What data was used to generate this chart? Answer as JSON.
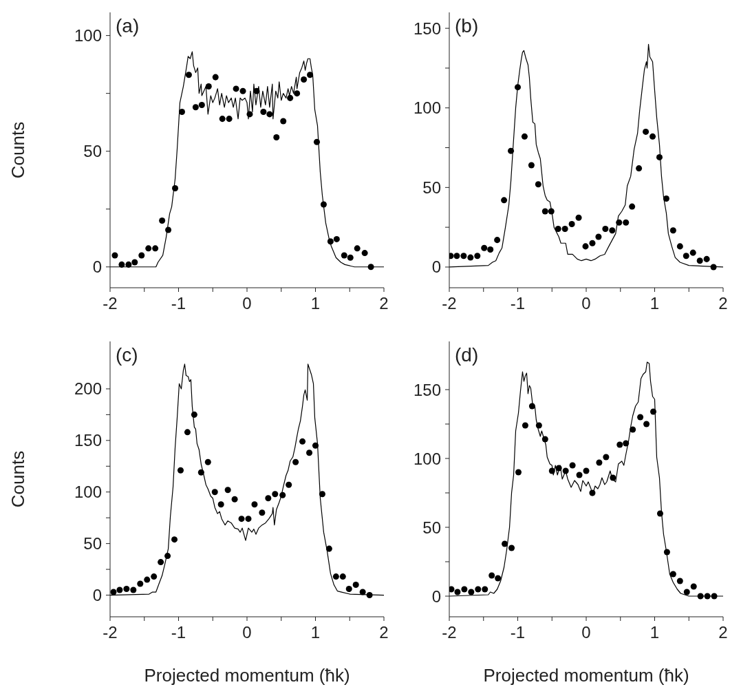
{
  "chart_data": [
    {
      "type": "scatter",
      "annotations": [
        "(a)"
      ],
      "ylabel": "Counts",
      "xlim": [
        -2,
        2
      ],
      "xticks": [
        -2,
        {
          "value": -1.5,
          "label": null
        },
        -1,
        {
          "value": -0.5,
          "label": null
        },
        0,
        {
          "value": 0.5,
          "label": null
        },
        1,
        {
          "value": 1.5,
          "label": null
        },
        2
      ],
      "ylim": [
        -9,
        110
      ],
      "yticks": [
        0,
        {
          "value": 25,
          "label": null
        },
        50,
        {
          "value": 75,
          "label": null
        },
        100
      ],
      "line_style": "solid",
      "series": [
        {
          "type": "line",
          "color": "#000000",
          "x": [
            -2,
            -1.33,
            -1.3,
            -1.23,
            -1.18,
            -1.13,
            -1.1,
            -1.05,
            -1.02,
            -0.98,
            -0.93,
            -0.88,
            -0.86,
            -0.83,
            -0.8,
            -0.78,
            -0.75,
            -0.72,
            -0.7,
            -0.67,
            -0.66,
            -0.63,
            -0.6,
            -0.57,
            -0.53,
            -0.5,
            -0.47,
            -0.43,
            -0.4,
            -0.37,
            -0.33,
            -0.3,
            -0.27,
            -0.23,
            -0.2,
            -0.17,
            -0.13,
            -0.1,
            -0.07,
            -0.03,
            0,
            0.02,
            0.05,
            0.08,
            0.1,
            0.13,
            0.17,
            0.2,
            0.23,
            0.27,
            0.3,
            0.33,
            0.37,
            0.38,
            0.42,
            0.45,
            0.47,
            0.5,
            0.53,
            0.57,
            0.6,
            0.62,
            0.65,
            0.68,
            0.72,
            0.73,
            0.77,
            0.8,
            0.83,
            0.85,
            0.87,
            0.89,
            0.92,
            0.94,
            0.96,
            0.99,
            1.03,
            1.07,
            1.1,
            1.15,
            1.2,
            1.23,
            1.3,
            1.37,
            1.43,
            1.57,
            2
          ],
          "values": [
            0,
            0,
            2,
            5,
            13,
            23,
            26,
            38,
            51,
            71,
            78,
            87,
            91,
            90,
            93,
            87,
            84,
            86,
            75,
            79,
            74,
            76,
            78,
            66,
            74,
            71,
            73,
            77,
            70,
            75,
            69,
            74,
            71,
            73,
            69,
            73,
            64,
            73,
            72,
            73,
            71,
            64,
            76,
            67,
            79,
            70,
            78,
            69,
            76,
            70,
            78,
            69,
            79,
            64,
            76,
            73,
            80,
            72,
            75,
            73,
            77,
            74,
            78,
            75,
            82,
            77,
            84,
            86,
            89,
            85,
            88,
            90,
            90,
            86,
            83,
            68,
            61,
            41,
            31,
            19,
            12,
            9,
            4,
            2,
            1,
            0,
            0
          ]
        },
        {
          "color": "#000000",
          "marker": "circle",
          "x": [
            -1.93,
            -1.83,
            -1.73,
            -1.64,
            -1.54,
            -1.44,
            -1.34,
            -1.24,
            -1.15,
            -1.05,
            -0.95,
            -0.85,
            -0.75,
            -0.66,
            -0.56,
            -0.46,
            -0.36,
            -0.26,
            -0.16,
            -0.06,
            0.04,
            0.14,
            0.24,
            0.33,
            0.43,
            0.53,
            0.63,
            0.73,
            0.83,
            0.92,
            1.02,
            1.12,
            1.22,
            1.31,
            1.42,
            1.51,
            1.61,
            1.72,
            1.81
          ],
          "values": [
            5,
            1,
            1,
            2,
            5,
            8,
            8,
            20,
            16,
            34,
            67,
            83,
            69,
            70,
            78,
            82,
            64,
            64,
            77,
            76,
            66,
            76,
            67,
            66,
            56,
            63,
            73,
            75,
            81,
            83,
            54,
            27,
            11,
            12,
            5,
            4,
            8,
            6,
            0
          ]
        }
      ]
    },
    {
      "type": "scatter",
      "annotations": [
        "(b)"
      ],
      "xlim": [
        -2,
        2
      ],
      "xticks": [
        -2,
        {
          "value": -1.5,
          "label": null
        },
        -1,
        {
          "value": -0.5,
          "label": null
        },
        0,
        {
          "value": 0.5,
          "label": null
        },
        1,
        {
          "value": 1.5,
          "label": null
        },
        2
      ],
      "ylim": [
        -13,
        160
      ],
      "yticks": [
        0,
        {
          "value": 25,
          "label": null
        },
        50,
        {
          "value": 75,
          "label": null
        },
        100,
        {
          "value": 125,
          "label": null
        },
        150
      ],
      "line_style": "solid",
      "series": [
        {
          "type": "line",
          "color": "#000000",
          "x": [
            -2,
            -1.43,
            -1.37,
            -1.32,
            -1.27,
            -1.23,
            -1.18,
            -1.13,
            -1.1,
            -1.07,
            -1.03,
            -1,
            -0.97,
            -0.95,
            -0.93,
            -0.91,
            -0.88,
            -0.85,
            -0.83,
            -0.81,
            -0.78,
            -0.75,
            -0.73,
            -0.7,
            -0.67,
            -0.63,
            -0.6,
            -0.57,
            -0.53,
            -0.5,
            -0.47,
            -0.4,
            -0.37,
            -0.3,
            -0.27,
            -0.2,
            -0.13,
            -0.07,
            0,
            0.07,
            0.13,
            0.2,
            0.27,
            0.33,
            0.43,
            0.47,
            0.52,
            0.57,
            0.6,
            0.65,
            0.7,
            0.75,
            0.78,
            0.82,
            0.85,
            0.88,
            0.89,
            0.91,
            0.93,
            0.97,
            1,
            1.03,
            1.07,
            1.1,
            1.13,
            1.17,
            1.2,
            1.25,
            1.3,
            1.37,
            1.5,
            2
          ],
          "values": [
            0,
            1,
            3,
            4,
            9,
            12,
            25,
            39,
            54,
            74,
            100,
            114,
            124,
            130,
            135,
            136,
            131,
            127,
            119,
            106,
            91,
            90,
            77,
            72,
            68,
            51,
            45,
            42,
            41,
            34,
            25,
            19,
            15,
            15,
            8,
            8,
            5,
            4,
            5,
            4,
            5,
            7,
            8,
            13,
            21,
            32,
            35,
            39,
            51,
            57,
            74,
            84,
            98,
            113,
            124,
            129,
            125,
            140,
            132,
            129,
            111,
            94,
            77,
            57,
            44,
            34,
            21,
            13,
            6,
            3,
            1,
            0
          ]
        },
        {
          "color": "#000000",
          "marker": "circle",
          "x": [
            -1.98,
            -1.89,
            -1.79,
            -1.69,
            -1.59,
            -1.49,
            -1.4,
            -1.3,
            -1.2,
            -1.1,
            -1,
            -0.9,
            -0.8,
            -0.7,
            -0.6,
            -0.51,
            -0.41,
            -0.31,
            -0.21,
            -0.11,
            -0.01,
            0.09,
            0.18,
            0.28,
            0.38,
            0.48,
            0.58,
            0.67,
            0.77,
            0.87,
            0.97,
            1.07,
            1.17,
            1.27,
            1.37,
            1.46,
            1.56,
            1.66,
            1.76,
            1.86
          ],
          "values": [
            7,
            7,
            7,
            6,
            7,
            12,
            11,
            17,
            42,
            73,
            113,
            82,
            64,
            52,
            35,
            35,
            24,
            24,
            27,
            31,
            13,
            15,
            19,
            24,
            23,
            28,
            28,
            38,
            62,
            85,
            82,
            69,
            43,
            23,
            13,
            7,
            9,
            4,
            5,
            0
          ]
        }
      ]
    },
    {
      "type": "scatter",
      "annotations": [
        "(c)"
      ],
      "xlabel": "Projected momentum (ħk)",
      "ylabel": "Counts",
      "xlim": [
        -2,
        2
      ],
      "xticks": [
        -2,
        {
          "value": -1.5,
          "label": null
        },
        -1,
        {
          "value": -0.5,
          "label": null
        },
        0,
        {
          "value": 0.5,
          "label": null
        },
        1,
        {
          "value": 1.5,
          "label": null
        },
        2
      ],
      "ylim": [
        -21,
        246
      ],
      "yticks": [
        0,
        {
          "value": 25,
          "label": null
        },
        50,
        {
          "value": 75,
          "label": null
        },
        100,
        {
          "value": 125,
          "label": null
        },
        150,
        {
          "value": 175,
          "label": null
        },
        200
      ],
      "line_style": "solid",
      "series": [
        {
          "type": "line",
          "color": "#000000",
          "x": [
            -2,
            -1.43,
            -1.38,
            -1.33,
            -1.28,
            -1.24,
            -1.2,
            -1.15,
            -1.12,
            -1.08,
            -1.05,
            -1.02,
            -0.99,
            -0.96,
            -0.93,
            -0.91,
            -0.89,
            -0.86,
            -0.84,
            -0.82,
            -0.8,
            -0.77,
            -0.75,
            -0.73,
            -0.7,
            -0.67,
            -0.63,
            -0.6,
            -0.57,
            -0.53,
            -0.5,
            -0.47,
            -0.43,
            -0.4,
            -0.37,
            -0.32,
            -0.28,
            -0.23,
            -0.18,
            -0.13,
            -0.1,
            -0.07,
            -0.02,
            0.02,
            0.07,
            0.1,
            0.13,
            0.17,
            0.22,
            0.27,
            0.32,
            0.37,
            0.38,
            0.4,
            0.43,
            0.47,
            0.5,
            0.53,
            0.57,
            0.6,
            0.63,
            0.67,
            0.7,
            0.73,
            0.75,
            0.78,
            0.81,
            0.83,
            0.85,
            0.88,
            0.89,
            0.92,
            0.94,
            0.97,
            0.99,
            1.03,
            1.07,
            1.12,
            1.17,
            1.22,
            1.27,
            1.32,
            1.38,
            1.5,
            2
          ],
          "values": [
            0,
            1,
            3,
            3,
            12,
            19,
            30,
            45,
            76,
            105,
            143,
            172,
            205,
            200,
            218,
            224,
            213,
            212,
            207,
            209,
            183,
            163,
            161,
            147,
            141,
            127,
            116,
            107,
            103,
            96,
            94,
            85,
            79,
            81,
            74,
            68,
            72,
            70,
            65,
            64,
            61,
            65,
            53,
            65,
            61,
            64,
            59,
            65,
            68,
            70,
            74,
            79,
            85,
            68,
            83,
            90,
            96,
            105,
            116,
            121,
            130,
            134,
            143,
            154,
            161,
            169,
            183,
            194,
            199,
            189,
            224,
            218,
            214,
            205,
            172,
            147,
            94,
            61,
            43,
            21,
            10,
            4,
            3,
            1,
            0
          ]
        },
        {
          "color": "#000000",
          "marker": "circle",
          "x": [
            -1.95,
            -1.86,
            -1.76,
            -1.66,
            -1.56,
            -1.46,
            -1.36,
            -1.26,
            -1.16,
            -1.06,
            -0.97,
            -0.87,
            -0.77,
            -0.67,
            -0.57,
            -0.47,
            -0.38,
            -0.28,
            -0.18,
            -0.08,
            0.02,
            0.11,
            0.22,
            0.31,
            0.41,
            0.52,
            0.61,
            0.71,
            0.81,
            0.91,
            1,
            1.1,
            1.2,
            1.3,
            1.4,
            1.49,
            1.59,
            1.69,
            1.79
          ],
          "values": [
            3,
            5,
            6,
            5,
            11,
            15,
            18,
            32,
            38,
            54,
            121,
            158,
            175,
            119,
            129,
            100,
            88,
            102,
            93,
            74,
            74,
            88,
            80,
            94,
            98,
            97,
            107,
            129,
            149,
            138,
            145,
            98,
            45,
            18,
            18,
            6,
            10,
            3,
            0
          ]
        }
      ]
    },
    {
      "type": "scatter",
      "annotations": [
        "(d)"
      ],
      "xlabel": "Projected momentum (ħk)",
      "xlim": [
        -2,
        2
      ],
      "xticks": [
        -2,
        {
          "value": -1.5,
          "label": null
        },
        -1,
        {
          "value": -0.5,
          "label": null
        },
        0,
        {
          "value": 0.5,
          "label": null
        },
        1,
        {
          "value": 1.5,
          "label": null
        },
        2
      ],
      "ylim": [
        -15,
        185
      ],
      "yticks": [
        0,
        {
          "value": 25,
          "label": null
        },
        50,
        {
          "value": 75,
          "label": null
        },
        100,
        {
          "value": 125,
          "label": null
        },
        150
      ],
      "line_style": "solid",
      "series": [
        {
          "type": "line",
          "color": "#000000",
          "x": [
            -2,
            -1.43,
            -1.4,
            -1.35,
            -1.3,
            -1.25,
            -1.2,
            -1.16,
            -1.12,
            -1.09,
            -1.06,
            -1.03,
            -0.99,
            -0.96,
            -0.93,
            -0.91,
            -0.89,
            -0.87,
            -0.85,
            -0.83,
            -0.81,
            -0.78,
            -0.75,
            -0.73,
            -0.7,
            -0.67,
            -0.65,
            -0.62,
            -0.59,
            -0.57,
            -0.53,
            -0.5,
            -0.48,
            -0.45,
            -0.42,
            -0.38,
            -0.35,
            -0.3,
            -0.27,
            -0.22,
            -0.17,
            -0.12,
            -0.08,
            -0.05,
            0,
            0.03,
            0.07,
            0.09,
            0.13,
            0.17,
            0.2,
            0.23,
            0.27,
            0.3,
            0.35,
            0.38,
            0.43,
            0.47,
            0.52,
            0.55,
            0.58,
            0.62,
            0.65,
            0.68,
            0.72,
            0.76,
            0.8,
            0.83,
            0.87,
            0.89,
            0.92,
            0.94,
            0.97,
            1,
            1.03,
            1.07,
            1.1,
            1.13,
            1.17,
            1.22,
            1.27,
            1.33,
            1.38,
            1.5,
            2
          ],
          "values": [
            0,
            1,
            3,
            2,
            5,
            11,
            21,
            34,
            50,
            75,
            88,
            120,
            133,
            149,
            163,
            156,
            160,
            162,
            147,
            153,
            151,
            138,
            138,
            128,
            121,
            116,
            120,
            115,
            110,
            101,
            96,
            95,
            88,
            95,
            88,
            95,
            85,
            91,
            85,
            79,
            84,
            81,
            76,
            84,
            80,
            83,
            78,
            73,
            80,
            78,
            81,
            86,
            81,
            83,
            91,
            85,
            83,
            96,
            98,
            95,
            103,
            113,
            123,
            131,
            138,
            141,
            158,
            161,
            163,
            170,
            169,
            156,
            145,
            143,
            101,
            86,
            61,
            45,
            33,
            16,
            10,
            5,
            2,
            0,
            0
          ]
        },
        {
          "color": "#000000",
          "marker": "circle",
          "x": [
            -1.97,
            -1.88,
            -1.78,
            -1.68,
            -1.58,
            -1.48,
            -1.38,
            -1.29,
            -1.19,
            -1.09,
            -0.99,
            -0.89,
            -0.79,
            -0.69,
            -0.6,
            -0.5,
            -0.4,
            -0.3,
            -0.2,
            -0.1,
            0,
            0.09,
            0.19,
            0.29,
            0.39,
            0.49,
            0.58,
            0.68,
            0.79,
            0.88,
            0.98,
            1.08,
            1.18,
            1.27,
            1.37,
            1.47,
            1.57,
            1.67,
            1.77,
            1.87
          ],
          "values": [
            5,
            3,
            5,
            3,
            5,
            5,
            15,
            13,
            38,
            35,
            90,
            124,
            138,
            124,
            114,
            91,
            93,
            91,
            95,
            88,
            91,
            75,
            97,
            101,
            86,
            110,
            111,
            121,
            130,
            125,
            134,
            60,
            32,
            16,
            11,
            3,
            7,
            0,
            0,
            0
          ]
        }
      ]
    }
  ]
}
